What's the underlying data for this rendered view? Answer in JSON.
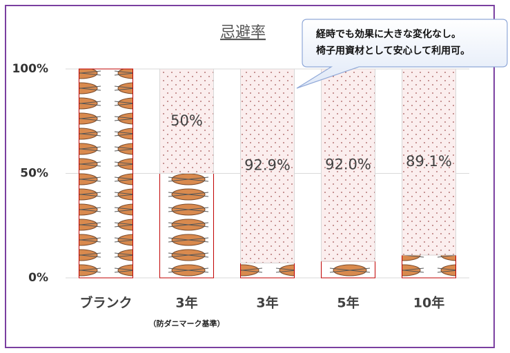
{
  "chart_data": {
    "type": "bar",
    "stacked": true,
    "title": "忌避率",
    "annotation": [
      "経時でも効果に大きな変化なし。",
      "椅子用資材として安心して利用可。"
    ],
    "categories": [
      "ブランク",
      "3年",
      "3年",
      "5年",
      "10年"
    ],
    "category_notes": [
      null,
      "（防ダニマーク基準）",
      null,
      null,
      null
    ],
    "series": [
      {
        "color": "#d98a4e",
        "values": [
          100,
          50,
          7.1,
          8.0,
          10.9
        ]
      },
      {
        "color": "#fbeeee",
        "values": [
          0,
          50,
          92.9,
          92.0,
          89.1
        ],
        "value_labels": [
          null,
          "50%",
          "92.9%",
          "92.0%",
          "89.1%"
        ]
      }
    ],
    "ylim": [
      0,
      100
    ],
    "yticks": [
      {
        "value": 0,
        "label": "0%"
      },
      {
        "value": 50,
        "label": "50%"
      },
      {
        "value": 100,
        "label": "100%"
      }
    ],
    "grid": true
  }
}
